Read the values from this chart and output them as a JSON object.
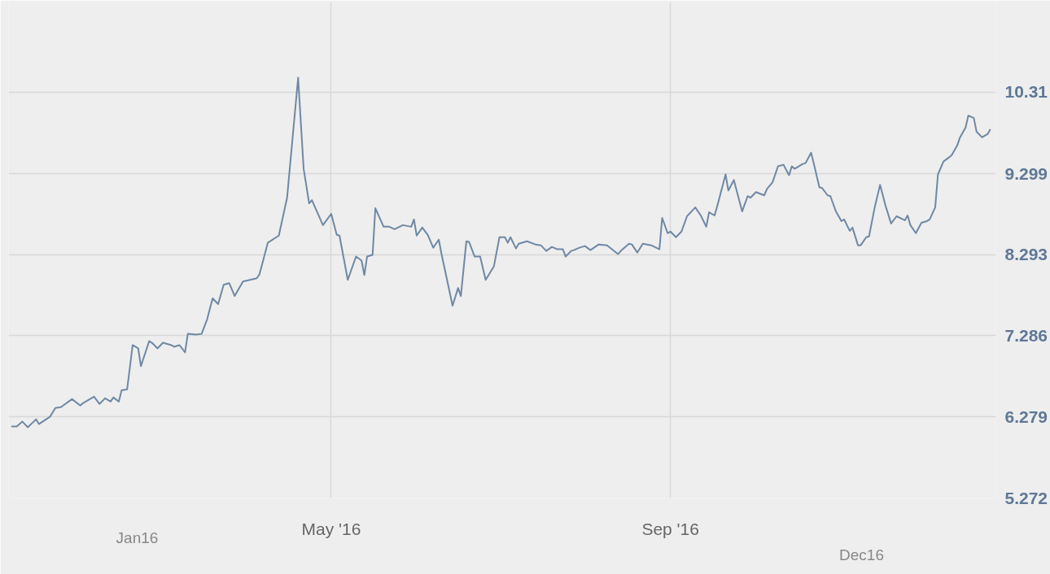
{
  "chart_data": {
    "type": "line",
    "x": [
      "2016-01-06",
      "2016-01-08",
      "2016-01-10",
      "2016-01-12",
      "2016-01-15",
      "2016-01-16",
      "2016-01-20",
      "2016-01-22",
      "2016-01-24",
      "2016-01-28",
      "2016-01-31",
      "2016-02-01",
      "2016-02-05",
      "2016-02-07",
      "2016-02-09",
      "2016-02-11",
      "2016-02-12",
      "2016-02-14",
      "2016-02-15",
      "2016-02-17",
      "2016-02-19",
      "2016-02-21",
      "2016-02-22",
      "2016-02-25",
      "2016-02-26",
      "2016-02-28",
      "2016-03-01",
      "2016-03-04",
      "2016-03-05",
      "2016-03-07",
      "2016-03-09",
      "2016-03-10",
      "2016-03-13",
      "2016-03-15",
      "2016-03-17",
      "2016-03-19",
      "2016-03-21",
      "2016-03-23",
      "2016-03-25",
      "2016-03-27",
      "2016-03-30",
      "2016-04-04",
      "2016-04-05",
      "2016-04-08",
      "2016-04-12",
      "2016-04-15",
      "2016-04-19",
      "2016-04-21",
      "2016-04-23",
      "2016-04-24",
      "2016-04-28",
      "2016-05-01",
      "2016-05-03",
      "2016-05-04",
      "2016-05-07",
      "2016-05-10",
      "2016-05-12",
      "2016-05-13",
      "2016-05-14",
      "2016-05-16",
      "2016-05-17",
      "2016-05-20",
      "2016-05-22",
      "2016-05-24",
      "2016-05-27",
      "2016-05-30",
      "2016-05-31",
      "2016-06-01",
      "2016-06-03",
      "2016-06-05",
      "2016-06-07",
      "2016-06-09",
      "2016-06-10",
      "2016-06-14",
      "2016-06-16",
      "2016-06-17",
      "2016-06-19",
      "2016-06-20",
      "2016-06-22",
      "2016-06-24",
      "2016-06-26",
      "2016-06-29",
      "2016-07-01",
      "2016-07-03",
      "2016-07-04",
      "2016-07-05",
      "2016-07-07",
      "2016-07-08",
      "2016-07-11",
      "2016-07-14",
      "2016-07-16",
      "2016-07-18",
      "2016-07-20",
      "2016-07-22",
      "2016-07-24",
      "2016-07-25",
      "2016-07-27",
      "2016-07-28",
      "2016-07-30",
      "2016-08-01",
      "2016-08-03",
      "2016-08-06",
      "2016-08-09",
      "2016-08-13",
      "2016-08-14",
      "2016-08-17",
      "2016-08-18",
      "2016-08-20",
      "2016-08-22",
      "2016-08-25",
      "2016-08-28",
      "2016-08-29",
      "2016-08-31",
      "2016-09-01",
      "2016-09-03",
      "2016-09-05",
      "2016-09-07",
      "2016-09-10",
      "2016-09-12",
      "2016-09-14",
      "2016-09-15",
      "2016-09-17",
      "2016-09-18",
      "2016-09-21",
      "2016-09-22",
      "2016-09-24",
      "2016-09-27",
      "2016-09-29",
      "2016-09-30",
      "2016-10-02",
      "2016-10-05",
      "2016-10-06",
      "2016-10-08",
      "2016-10-10",
      "2016-10-12",
      "2016-10-14",
      "2016-10-15",
      "2016-10-16",
      "2016-10-19",
      "2016-10-20",
      "2016-10-22",
      "2016-10-23",
      "2016-10-25",
      "2016-10-26",
      "2016-10-28",
      "2016-10-29",
      "2016-10-31",
      "2016-11-02",
      "2016-11-03",
      "2016-11-05",
      "2016-11-06",
      "2016-11-08",
      "2016-11-09",
      "2016-11-11",
      "2016-11-12",
      "2016-11-14",
      "2016-11-16",
      "2016-11-18",
      "2016-11-20",
      "2016-11-22",
      "2016-11-25",
      "2016-11-26",
      "2016-11-27",
      "2016-11-29",
      "2016-12-01",
      "2016-12-03",
      "2016-12-04",
      "2016-12-06",
      "2016-12-07",
      "2016-12-09",
      "2016-12-11",
      "2016-12-12",
      "2016-12-14",
      "2016-12-15",
      "2016-12-17",
      "2016-12-18",
      "2016-12-20",
      "2016-12-21",
      "2016-12-23",
      "2016-12-25",
      "2016-12-26"
    ],
    "series": [
      {
        "color": "#6e88a5",
        "values": [
          6.16,
          6.16,
          6.22,
          6.15,
          6.25,
          6.19,
          6.28,
          6.39,
          6.4,
          6.5,
          6.42,
          6.45,
          6.53,
          6.44,
          6.51,
          6.47,
          6.52,
          6.47,
          6.61,
          6.62,
          7.17,
          7.13,
          6.91,
          7.22,
          7.2,
          7.13,
          7.2,
          7.17,
          7.15,
          7.17,
          7.08,
          7.31,
          7.3,
          7.31,
          7.49,
          7.75,
          7.68,
          7.92,
          7.94,
          7.78,
          7.96,
          8.0,
          8.05,
          8.44,
          8.53,
          9.0,
          10.49,
          9.36,
          8.93,
          8.97,
          8.66,
          8.8,
          8.54,
          8.53,
          7.98,
          8.27,
          8.22,
          8.04,
          8.27,
          8.29,
          8.87,
          8.64,
          8.64,
          8.61,
          8.66,
          8.64,
          8.73,
          8.53,
          8.63,
          8.54,
          8.38,
          8.48,
          8.3,
          7.66,
          7.88,
          7.78,
          8.46,
          8.45,
          8.27,
          8.27,
          7.98,
          8.15,
          8.51,
          8.51,
          8.44,
          8.51,
          8.37,
          8.43,
          8.46,
          8.42,
          8.41,
          8.34,
          8.39,
          8.36,
          8.36,
          8.27,
          8.34,
          8.35,
          8.38,
          8.4,
          8.35,
          8.42,
          8.41,
          8.3,
          8.34,
          8.43,
          8.42,
          8.32,
          8.43,
          8.41,
          8.36,
          8.75,
          8.56,
          8.58,
          8.51,
          8.58,
          8.77,
          8.88,
          8.78,
          8.64,
          8.82,
          8.78,
          8.9,
          9.29,
          9.09,
          9.22,
          8.83,
          9.02,
          9.0,
          9.07,
          9.03,
          9.11,
          9.19,
          9.39,
          9.41,
          9.28,
          9.39,
          9.36,
          9.42,
          9.43,
          9.56,
          9.42,
          9.13,
          9.12,
          9.03,
          9.02,
          8.83,
          8.71,
          8.73,
          8.59,
          8.63,
          8.41,
          8.41,
          8.51,
          8.52,
          8.87,
          9.16,
          8.9,
          8.68,
          8.77,
          8.72,
          8.78,
          8.66,
          8.56,
          8.69,
          8.71,
          8.73,
          8.88,
          9.29,
          9.45,
          9.5,
          9.53,
          9.65,
          9.75,
          9.87,
          10.02,
          9.99,
          9.82,
          9.75,
          9.79,
          9.85
        ]
      }
    ],
    "xlim": [
      "2016-01-05",
      "2016-12-28"
    ],
    "xticks": [
      {
        "value": "2016-05-01",
        "label": "May '16"
      },
      {
        "value": "2016-09-01",
        "label": "Sep '16"
      }
    ],
    "annotations": [
      "Jan16",
      "Dec16"
    ],
    "ylim": [
      5.272,
      11.43
    ],
    "yticks": [
      5.272,
      6.279,
      7.286,
      8.293,
      9.299,
      10.31
    ],
    "grid": true,
    "line_style": "solid"
  }
}
